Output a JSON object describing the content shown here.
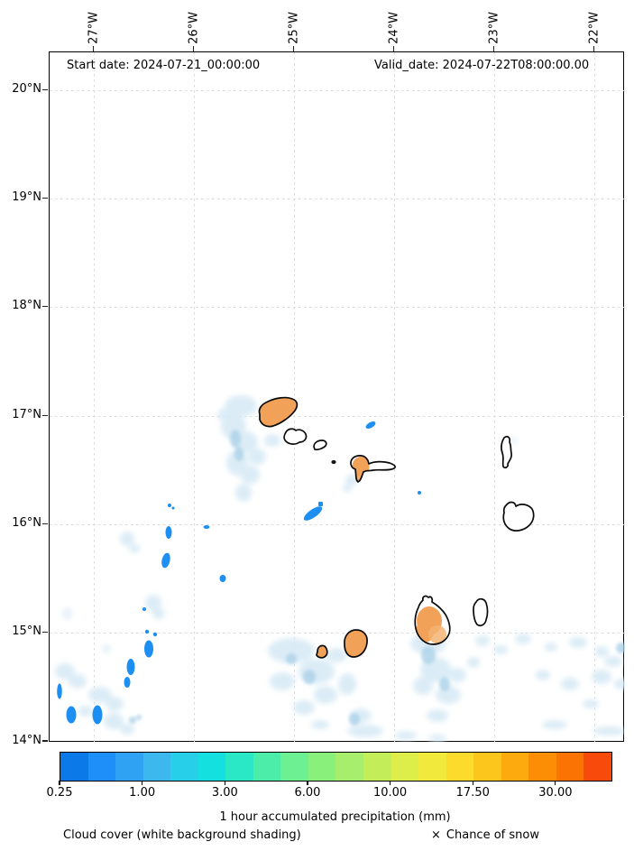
{
  "figure": {
    "title_left": "Start date: 2024-07-21_00:00:00",
    "title_right": "Valid_date: 2024-07-22T08:00:00.00"
  },
  "axes": {
    "lon": [
      "27°W",
      "26°W",
      "25°W",
      "24°W",
      "23°W",
      "22°W"
    ],
    "lat": [
      "20°N",
      "19°N",
      "18°N",
      "17°N",
      "16°N",
      "15°N",
      "14°N"
    ]
  },
  "colorbar": {
    "label": "1 hour accumulated precipitation (mm)",
    "ticks": [
      {
        "label": "0.25",
        "pos": 0
      },
      {
        "label": "1.00",
        "pos": 3
      },
      {
        "label": "3.00",
        "pos": 6
      },
      {
        "label": "6.00",
        "pos": 9
      },
      {
        "label": "10.00",
        "pos": 12
      },
      {
        "label": "17.50",
        "pos": 15
      },
      {
        "label": "30.00",
        "pos": 18
      }
    ],
    "colors": [
      "#0b79e8",
      "#1e8ef9",
      "#2fa2f4",
      "#3db8ef",
      "#28cfe9",
      "#13e0df",
      "#2ae8c5",
      "#4ceda9",
      "#6cf092",
      "#8af07c",
      "#a6ee6b",
      "#c3ee5a",
      "#ddee4a",
      "#f1e93b",
      "#fcdb2c",
      "#fcc61c",
      "#fdaa0e",
      "#fc8e06",
      "#fb7302",
      "#f84b0b"
    ]
  },
  "legend": {
    "cloud_label": "Cloud cover (white background shading)",
    "snow_marker": "×",
    "snow_label": "Chance of snow"
  },
  "chart_data": {
    "type": "map",
    "title": "1 hour accumulated precipitation forecast over the Cape Verde islands",
    "annotations": [
      "Start date: 2024-07-21_00:00:00",
      "Valid_date: 2024-07-22T08:00:00.00"
    ],
    "x_axis": {
      "ticks": [
        "27°W",
        "26°W",
        "25°W",
        "24°W",
        "23°W",
        "22°W"
      ],
      "kind": "longitude"
    },
    "y_axis": {
      "ticks": [
        "20°N",
        "19°N",
        "18°N",
        "17°N",
        "16°N",
        "15°N",
        "14°N"
      ],
      "kind": "latitude"
    },
    "colorbar": {
      "label": "1 hour accumulated precipitation (mm)",
      "tick_labels": [
        "0.25",
        "1.00",
        "3.00",
        "6.00",
        "10.00",
        "17.50",
        "30.00"
      ],
      "n_segments": 20,
      "scale": "discrete, blue (low) to red (high)"
    },
    "legend": [
      "Cloud cover (white background shading)",
      "× Chance of snow"
    ],
    "features": {
      "islands_outlined": [
        "Santo Antão",
        "São Vicente",
        "Santa Luzia",
        "São Nicolau",
        "Sal",
        "Boa Vista",
        "Maio",
        "Santiago",
        "Fogo",
        "Brava"
      ],
      "orange_precip_shaded_islands": [
        "Santo Antão",
        "São Nicolau (west)",
        "Santiago (center)",
        "Fogo",
        "Brava"
      ],
      "cloud_shading": "pale blue patches mostly south of 17°N and below the southern islands",
      "rain_cells": "small bright blue cells scattered between 14°N and 17°N, mostly west of 25°W"
    }
  }
}
